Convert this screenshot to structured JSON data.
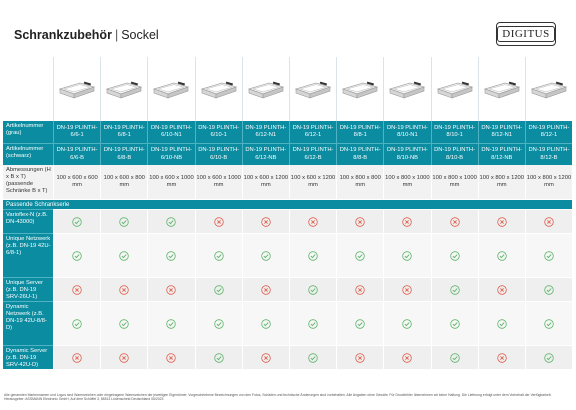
{
  "header": {
    "title_bold": "Schrankzubehör",
    "separator": "|",
    "title_light": "Sockel",
    "logo_text": "DIGITUS"
  },
  "colors": {
    "accent": "#0b8ca1",
    "check": "#5db56a",
    "cross": "#e0614f"
  },
  "rows": {
    "art_grau": {
      "label": "Artikelnummer (grau)",
      "values": [
        "DN-19 PLINTH-6/6-1",
        "DN-19 PLINTH-6/8-1",
        "DN-19 PLINTH-6/10-N1",
        "DN-19 PLINTH-6/10-1",
        "DN-19 PLINTH-6/12-N1",
        "DN-19 PLINTH-6/12-1",
        "DN-19 PLINTH-8/8-1",
        "DN-19 PLINTH-8/10-N1",
        "DN-19 PLINTH-8/10-1",
        "DN-19 PLINTH-8/12-N1",
        "DN-19 PLINTH-8/12-1"
      ]
    },
    "art_schwarz": {
      "label": "Artikelnummer (schwarz)",
      "values": [
        "DN-19 PLINTH-6/6-B",
        "DN-19 PLINTH-6/8-B",
        "DN-19 PLINTH-6/10-NB",
        "DN-19 PLINTH-6/10-B",
        "DN-19 PLINTH-6/12-NB",
        "DN-19 PLINTH-6/12-B",
        "DN-19 PLINTH-8/8-B",
        "DN-19 PLINTH-8/10-NB",
        "DN-19 PLINTH-8/10-B",
        "DN-19 PLINTH-8/12-NB",
        "DN-19 PLINTH-8/12-B"
      ]
    },
    "dims": {
      "label": "Abmessungen (H x B x T) (passende Schränke B x T)",
      "values": [
        "100 x 600 x 600 mm",
        "100 x 600 x 800 mm",
        "100 x 600 x 1000 mm",
        "100 x 600 x 1000 mm",
        "100 x 600 x 1200 mm",
        "100 x 600 x 1200 mm",
        "100 x 800 x 800 mm",
        "100 x 800 x 1000 mm",
        "100 x 800 x 1000 mm",
        "100 x 800 x 1200 mm",
        "100 x 800 x 1200 mm"
      ]
    }
  },
  "section_label": "Passende Schrankserie",
  "features": [
    {
      "label": "Varioflex-N (z.B. DN-43000)",
      "marks": [
        "check",
        "check",
        "check",
        "cross",
        "cross",
        "cross",
        "cross",
        "cross",
        "cross",
        "cross",
        "cross"
      ]
    },
    {
      "label": "Unique Netzwerk (z.B. DN-19 42U-6/8-1)",
      "marks": [
        "check",
        "check",
        "check",
        "check",
        "check",
        "check",
        "check",
        "check",
        "check",
        "check",
        "check"
      ]
    },
    {
      "label": "Unique Server (z.B. DN-19 SRV-26U-1)",
      "marks": [
        "cross",
        "cross",
        "cross",
        "check",
        "cross",
        "check",
        "cross",
        "cross",
        "check",
        "cross",
        "check"
      ]
    },
    {
      "label": "Dynamic Netzwerk (z.B. DN-19 42U-8/8-D)",
      "marks": [
        "check",
        "check",
        "check",
        "check",
        "check",
        "check",
        "check",
        "check",
        "check",
        "check",
        "check"
      ]
    },
    {
      "label": "Dynamic Server (z.B. DN-19 SRV-42U-D)",
      "marks": [
        "cross",
        "cross",
        "cross",
        "check",
        "cross",
        "check",
        "cross",
        "cross",
        "check",
        "cross",
        "check"
      ]
    }
  ],
  "footer": "Alle genannten Markennamen und Logos sind Warenzeichen oder eingetragene Warenzeichen der jeweiligen Eigentümer. Vorgeschriebene Bezeichnungen von den Fotos, Schäden und technische Änderungen sind vorbehalten. Alle Angaben ohne Gewähr. Für Druckfehler übernehmen wir keine Haftung. Die Lieferung erfolgt unter dem Vorbehalt der Verfügbarkeit. Herausgeber: ASSMANN Electronic GmbH, Auf dem Schüffel 3, 58513 Lüdenscheid Deutschland 06/2023"
}
